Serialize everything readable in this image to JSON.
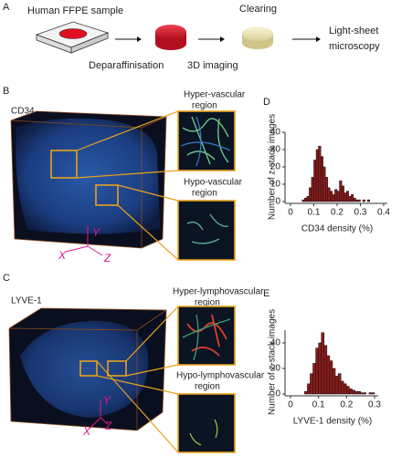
{
  "figure": {
    "panel_labels": [
      "A",
      "B",
      "C",
      "D",
      "E"
    ],
    "workflow": {
      "sample": "Human FFPE sample",
      "step1": "Deparaffinisation",
      "step2": "3D imaging",
      "step3": "Clearing",
      "output": [
        "Light-sheet",
        "microscopy"
      ]
    },
    "panel_b": {
      "marker": "CD34",
      "inset_top": [
        "Hyper-vascular",
        "region"
      ],
      "inset_bottom": [
        "Hypo-vascular",
        "region"
      ],
      "axes": [
        "X",
        "Y",
        "Z"
      ]
    },
    "panel_c": {
      "marker": "LYVE-1",
      "inset_top": [
        "Hyper-lymphovascular",
        "region"
      ],
      "inset_bottom": [
        "Hypo-lymphovascular",
        "region"
      ],
      "axes": [
        "X",
        "Y",
        "Z"
      ]
    }
  },
  "chart_data": [
    {
      "type": "histogram",
      "x_label": "CD34 density (%)",
      "y_label": "Number of z-stack images",
      "bins": [
        0.05,
        0.06,
        0.07,
        0.08,
        0.09,
        0.1,
        0.11,
        0.12,
        0.13,
        0.14,
        0.15,
        0.16,
        0.17,
        0.18,
        0.19,
        0.2,
        0.21,
        0.22,
        0.23,
        0.24,
        0.25,
        0.26,
        0.27,
        0.28,
        0.29,
        0.3,
        0.31,
        0.32,
        0.33,
        0.34
      ],
      "values": [
        1,
        2,
        3,
        8,
        14,
        24,
        30,
        32,
        26,
        20,
        14,
        8,
        6,
        4,
        7,
        6,
        12,
        9,
        5,
        6,
        3,
        4,
        2,
        1,
        1,
        0,
        1,
        0,
        1
      ],
      "color": "#8b1a1a",
      "xlim": [
        0,
        0.4
      ],
      "xticks": [
        0,
        0.1,
        0.2,
        0.3,
        0.4
      ],
      "ylim": [
        0,
        40
      ],
      "yticks": [
        0,
        10,
        20,
        30,
        40
      ]
    },
    {
      "type": "histogram",
      "x_label": "LYVE-1 density (%)",
      "y_label": "Number of z-stack images",
      "bins": [
        0.05,
        0.06,
        0.07,
        0.08,
        0.09,
        0.1,
        0.11,
        0.12,
        0.13,
        0.14,
        0.15,
        0.16,
        0.17,
        0.18,
        0.19,
        0.2,
        0.21,
        0.22,
        0.23,
        0.24,
        0.25,
        0.26,
        0.27,
        0.28,
        0.29,
        0.3
      ],
      "values": [
        2,
        8,
        16,
        24,
        36,
        40,
        48,
        38,
        30,
        26,
        20,
        14,
        16,
        10,
        8,
        6,
        4,
        3,
        2,
        2,
        1,
        1,
        0,
        1,
        1
      ],
      "color": "#8b1a1a",
      "xlim": [
        0,
        0.3
      ],
      "xticks": [
        0,
        0.1,
        0.2,
        0.3
      ],
      "ylim": [
        0,
        50
      ],
      "yticks": [
        0,
        20,
        40
      ]
    }
  ]
}
